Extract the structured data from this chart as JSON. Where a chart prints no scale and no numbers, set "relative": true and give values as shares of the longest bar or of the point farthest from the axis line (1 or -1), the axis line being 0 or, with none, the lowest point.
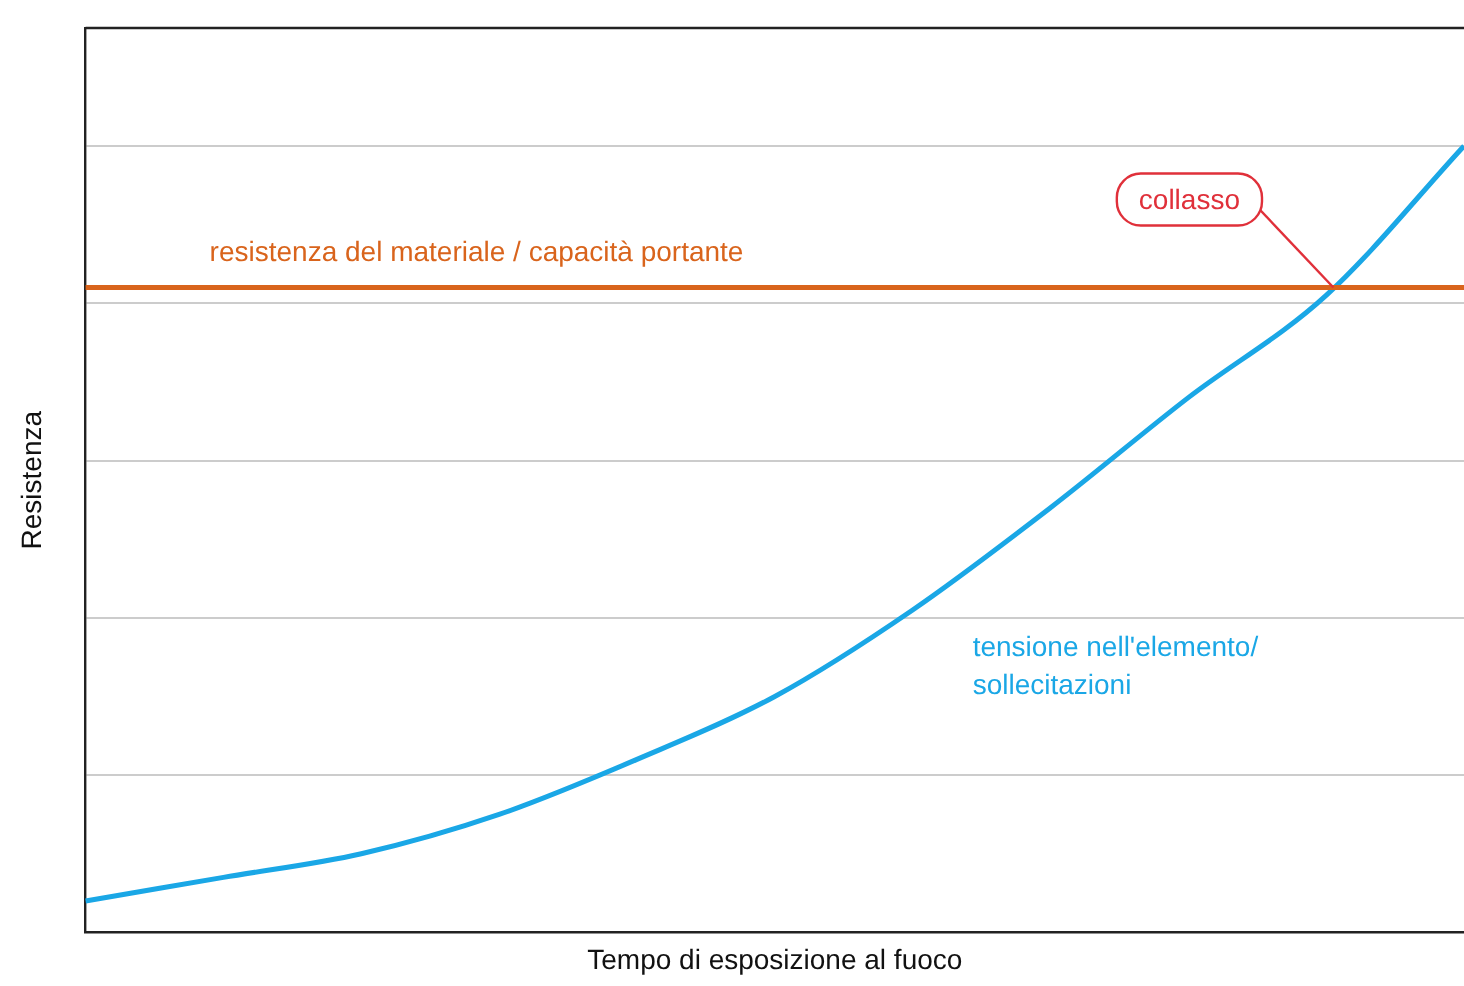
{
  "chart_data": {
    "type": "line",
    "relative": true,
    "xlabel": "Tempo di esposizione al fuoco",
    "ylabel": "Resistenza",
    "categories": [
      null,
      null,
      null,
      null,
      null,
      null,
      null,
      null,
      null,
      null,
      null
    ],
    "series": [
      {
        "name": "tensione nell'elemento/ sollecitazioni",
        "color": "#1aa7e6",
        "values": [
          0.04,
          0.07,
          0.1,
          0.15,
          0.22,
          0.3,
          0.41,
          0.54,
          0.68,
          0.81,
          1.0
        ]
      }
    ],
    "ref_lines": [
      {
        "axis": "y",
        "value": 0.82,
        "label": "resistenza del materiale / capacità portante",
        "color": "#d9641c"
      }
    ],
    "annotations": [
      "collasso"
    ],
    "grid": "y",
    "marker": "none",
    "line_style": "solid",
    "legend": false
  }
}
